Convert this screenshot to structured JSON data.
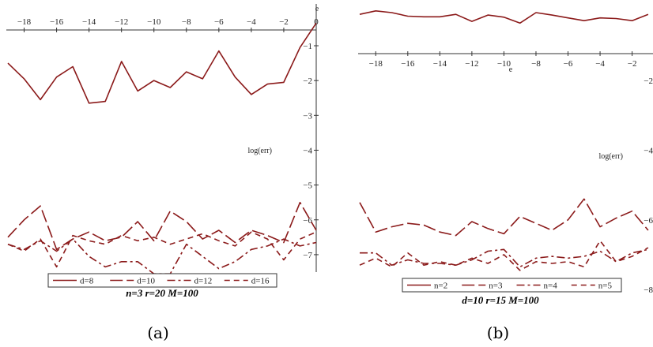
{
  "chart_data": [
    {
      "type": "line",
      "panel_label": "(a)",
      "caption": "n=3 r=20 M=100",
      "xlabel": "e",
      "ylabel": "log(err)",
      "xlim": [
        -19,
        0
      ],
      "ylim": [
        -7.5,
        0.2
      ],
      "x_ticks": [
        -18,
        -16,
        -14,
        -12,
        -10,
        -8,
        -6,
        -4,
        -2,
        0
      ],
      "y_ticks": [
        -1,
        -2,
        -3,
        -4,
        -5,
        -6,
        -7
      ],
      "x": [
        -19,
        -18,
        -17,
        -16,
        -15,
        -14,
        -13,
        -12,
        -11,
        -10,
        -9,
        -8,
        -7,
        -6,
        -5,
        -4,
        -3,
        -2,
        -1,
        0
      ],
      "legend_position": "bottom",
      "series": [
        {
          "name": "d=8",
          "dash": "solid",
          "values": [
            -1.5,
            -1.95,
            -2.55,
            -1.9,
            -1.6,
            -2.65,
            -2.6,
            -1.45,
            -2.3,
            -2.0,
            -2.2,
            -1.75,
            -1.95,
            -1.15,
            -1.9,
            -2.4,
            -2.1,
            -2.05,
            -1.05,
            -0.35
          ]
        },
        {
          "name": "d=10",
          "dash": "long-dash",
          "values": [
            -6.5,
            -6.0,
            -5.6,
            -6.85,
            -6.55,
            -6.35,
            -6.6,
            -6.5,
            -6.05,
            -6.6,
            -5.75,
            -6.05,
            -6.55,
            -6.3,
            -6.65,
            -6.3,
            -6.45,
            -6.65,
            -5.5,
            -6.3
          ]
        },
        {
          "name": "d=12",
          "dash": "dash-dot",
          "values": [
            -6.7,
            -6.85,
            -6.6,
            -6.9,
            -6.55,
            -7.05,
            -7.35,
            -7.2,
            -7.2,
            -7.55,
            -7.55,
            -6.7,
            -7.05,
            -7.4,
            -7.2,
            -6.85,
            -6.75,
            -6.55,
            -6.75,
            -6.65
          ]
        },
        {
          "name": "d=16",
          "dash": "dashed",
          "values": [
            -6.7,
            -6.9,
            -6.55,
            -7.35,
            -6.45,
            -6.6,
            -6.7,
            -6.45,
            -6.6,
            -6.5,
            -6.7,
            -6.55,
            -6.4,
            -6.6,
            -6.75,
            -6.35,
            -6.55,
            -7.15,
            -6.55,
            -6.35
          ]
        }
      ]
    },
    {
      "type": "line",
      "panel_label": "(b)",
      "caption": "d=10 r=15 M=100",
      "xlabel": "e",
      "ylabel": "log(err)",
      "xlim": [
        -19,
        -0.5
      ],
      "ylim": [
        -7.5,
        0.2
      ],
      "x_ticks": [
        -18,
        -16,
        -14,
        -12,
        -10,
        -8,
        -6,
        -4,
        -2
      ],
      "y_ticks": [
        -2,
        -4,
        -6,
        -8
      ],
      "x": [
        -19,
        -18,
        -17,
        -16,
        -15,
        -14,
        -13,
        -12,
        -11,
        -10,
        -9,
        -8,
        -7,
        -6,
        -5,
        -4,
        -3,
        -2,
        -1
      ],
      "legend_position": "bottom",
      "series": [
        {
          "name": "n=2",
          "dash": "solid",
          "values": [
            -0.1,
            0.0,
            -0.05,
            -0.15,
            -0.17,
            -0.17,
            -0.1,
            -0.3,
            -0.12,
            -0.18,
            -0.35,
            -0.05,
            -0.12,
            -0.2,
            -0.28,
            -0.2,
            -0.22,
            -0.28,
            -0.1
          ]
        },
        {
          "name": "n=3",
          "dash": "long-dash",
          "values": [
            -5.5,
            -6.35,
            -6.2,
            -6.1,
            -6.15,
            -6.35,
            -6.45,
            -6.05,
            -6.25,
            -6.4,
            -5.9,
            -6.1,
            -6.3,
            -6.0,
            -5.4,
            -6.2,
            -5.95,
            -5.75,
            -6.3
          ]
        },
        {
          "name": "n=4",
          "dash": "dash-dot",
          "values": [
            -6.95,
            -6.95,
            -7.3,
            -7.15,
            -7.25,
            -7.25,
            -7.3,
            -7.15,
            -6.9,
            -6.85,
            -7.35,
            -7.1,
            -7.05,
            -7.1,
            -7.05,
            -6.9,
            -7.2,
            -6.95,
            -6.85
          ]
        },
        {
          "name": "n=5",
          "dash": "dashed",
          "values": [
            -7.3,
            -7.1,
            -7.35,
            -6.95,
            -7.3,
            -7.2,
            -7.3,
            -7.1,
            -7.25,
            -7.0,
            -7.45,
            -7.2,
            -7.25,
            -7.2,
            -7.35,
            -6.6,
            -7.2,
            -7.05,
            -6.8
          ]
        }
      ]
    }
  ]
}
